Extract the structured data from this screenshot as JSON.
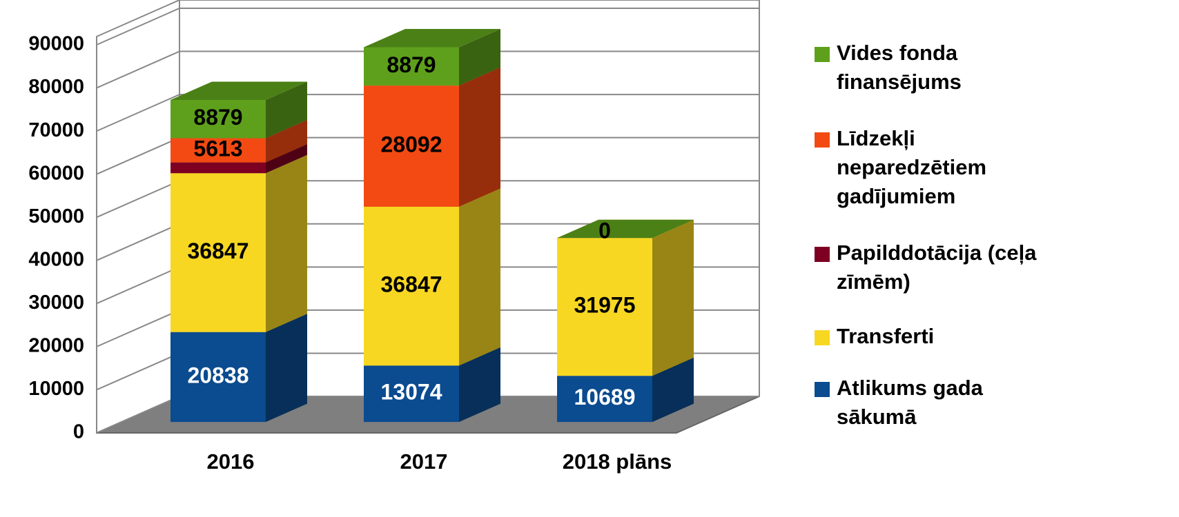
{
  "chart_data": {
    "type": "bar3d_stacked",
    "categories": [
      "2016",
      "2017",
      "2018 plāns"
    ],
    "series": [
      {
        "name": "Atlikums gada sākumā",
        "color": "#0b4b8f",
        "label_color": "#ffffff",
        "values": [
          20838,
          13074,
          10689
        ]
      },
      {
        "name": "Transferti",
        "color": "#f7d722",
        "label_color": "#000000",
        "values": [
          36847,
          36847,
          31975
        ]
      },
      {
        "name": "Papilddotācija (ceļa zīmēm)",
        "color": "#7d0022",
        "label_color": "#000000",
        "values": [
          2500,
          null,
          null
        ],
        "value_labels": [
          null,
          null,
          null
        ]
      },
      {
        "name": "Līdzekļi neparedzētiem gadījumiem",
        "color": "#f24a12",
        "label_color": "#000000",
        "values": [
          5613,
          28092,
          null
        ]
      },
      {
        "name": "Vides fonda finansējums",
        "color": "#5ea01c",
        "label_color": "#000000",
        "values": [
          8879,
          8879,
          0
        ]
      }
    ],
    "ylim": [
      0,
      90000
    ],
    "yticks": [
      0,
      10000,
      20000,
      30000,
      40000,
      50000,
      60000,
      70000,
      80000,
      90000
    ],
    "grid": true,
    "legend": "right"
  }
}
